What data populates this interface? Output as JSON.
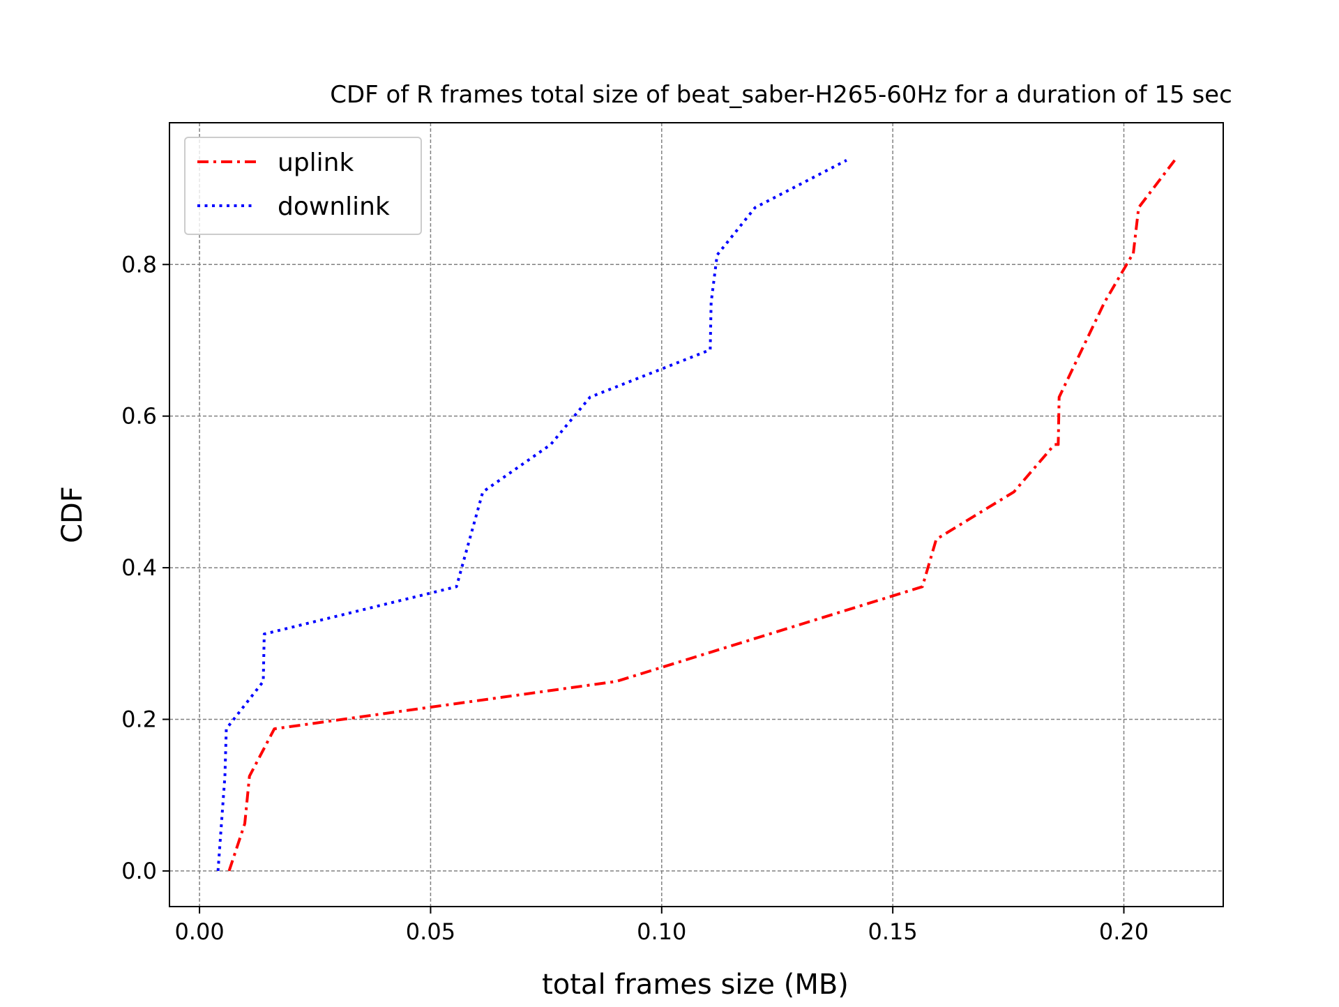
{
  "chart_data": {
    "type": "line",
    "title": "CDF of R frames total size of beat_saber-H265-60Hz for a duration of 15 sec",
    "xlabel": "total frames size (MB)",
    "ylabel": "CDF",
    "xlim": [
      -0.0065,
      0.2215
    ],
    "ylim": [
      -0.047,
      0.987
    ],
    "grid": true,
    "legend_position": "top-left",
    "x_ticks": [
      0.0,
      0.05,
      0.1,
      0.15,
      0.2
    ],
    "x_tick_labels": [
      "0.00",
      "0.05",
      "0.10",
      "0.15",
      "0.20"
    ],
    "y_ticks": [
      0.0,
      0.2,
      0.4,
      0.6,
      0.8
    ],
    "y_tick_labels": [
      "0.0",
      "0.2",
      "0.4",
      "0.6",
      "0.8"
    ],
    "series": [
      {
        "name": "uplink",
        "color": "#ff0000",
        "style": "dashdot",
        "x": [
          0.0064,
          0.0098,
          0.0108,
          0.0162,
          0.0902,
          0.1564,
          0.1594,
          0.1762,
          0.185,
          0.1858,
          0.186,
          0.1958,
          0.2018,
          0.202,
          0.2032,
          0.211
        ],
        "y": [
          0.0,
          0.0625,
          0.125,
          0.1875,
          0.25,
          0.375,
          0.4375,
          0.5,
          0.5625,
          0.5625,
          0.625,
          0.75,
          0.8125,
          0.8125,
          0.875,
          0.9375
        ]
      },
      {
        "name": "downlink",
        "color": "#0000ff",
        "style": "dotted",
        "x": [
          0.004,
          0.0055,
          0.0058,
          0.0138,
          0.014,
          0.0556,
          0.0613,
          0.076,
          0.0845,
          0.1105,
          0.1107,
          0.112,
          0.1202,
          0.14
        ],
        "y": [
          0.0,
          0.125,
          0.1875,
          0.25,
          0.3125,
          0.375,
          0.5,
          0.5625,
          0.625,
          0.6875,
          0.75,
          0.8125,
          0.875,
          0.9375
        ]
      }
    ]
  }
}
